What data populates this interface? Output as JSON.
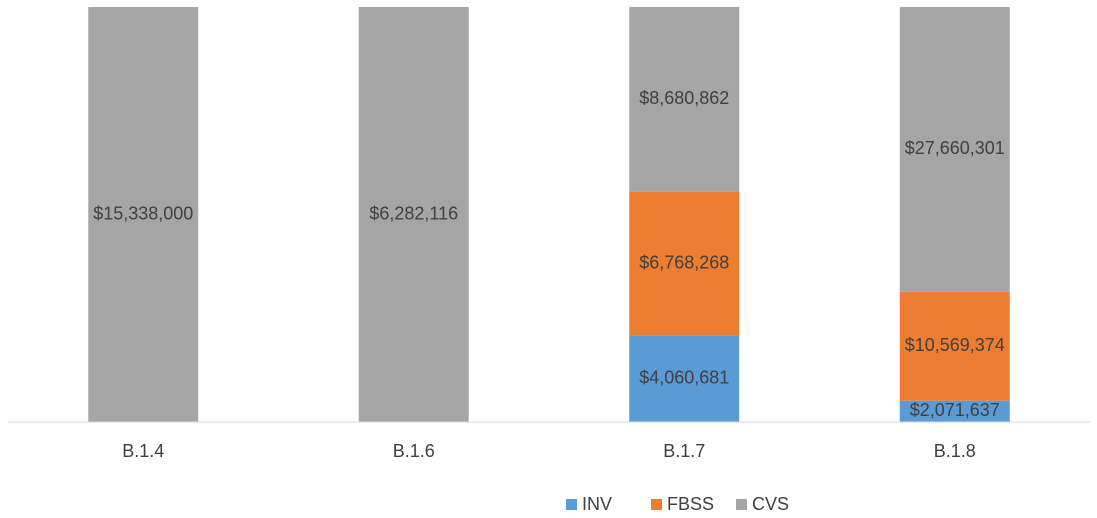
{
  "chart_data": {
    "type": "bar",
    "stacked": "percent",
    "categories": [
      "B.1.4",
      "B.1.6",
      "B.1.7",
      "B.1.8"
    ],
    "series": [
      {
        "name": "INV",
        "color": "#5b9bd5",
        "values": [
          null,
          null,
          4060681,
          2071637
        ],
        "value_labels": [
          null,
          null,
          "$4,060,681",
          "$2,071,637"
        ]
      },
      {
        "name": "FBSS",
        "color": "#ed7d31",
        "values": [
          null,
          null,
          6768268,
          10569374
        ],
        "value_labels": [
          null,
          null,
          "$6,768,268",
          "$10,569,374"
        ]
      },
      {
        "name": "CVS",
        "color": "#a5a5a5",
        "values": [
          15338000,
          6282116,
          8680862,
          27660301
        ],
        "value_labels": [
          "$15,338,000",
          "$6,282,116",
          "$8,680,862",
          "$27,660,301"
        ]
      }
    ],
    "legend": "bottom"
  }
}
